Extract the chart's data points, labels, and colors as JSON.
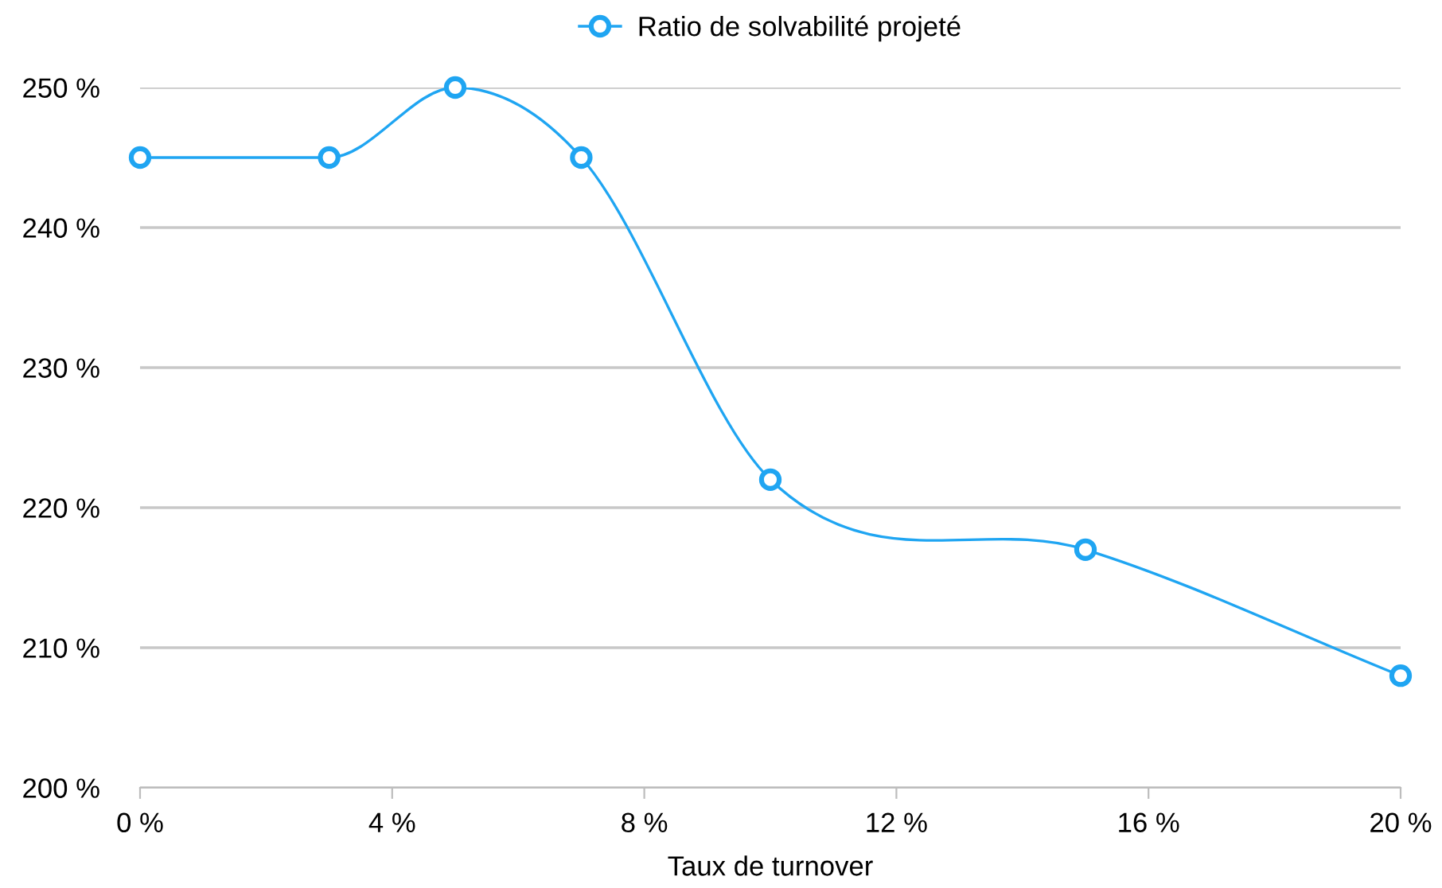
{
  "chart_data": {
    "type": "line",
    "xlabel": "Taux de turnover",
    "x": [
      0,
      3,
      5,
      7,
      10,
      15,
      20
    ],
    "series": [
      {
        "name": "Ratio de solvabilité projeté",
        "color": "#1fa5f2",
        "values": [
          245,
          245,
          250,
          245,
          222,
          217,
          208
        ]
      }
    ],
    "xlim": [
      0,
      20
    ],
    "xticks": [
      {
        "value": 0,
        "label": "0 %"
      },
      {
        "value": 4,
        "label": "4 %"
      },
      {
        "value": 8,
        "label": "8 %"
      },
      {
        "value": 12,
        "label": "12 %"
      },
      {
        "value": 16,
        "label": "16 %"
      },
      {
        "value": 20,
        "label": "20 %"
      }
    ],
    "ylim": [
      200,
      250
    ],
    "yticks": [
      {
        "value": 200,
        "label": "200 %"
      },
      {
        "value": 210,
        "label": "210 %"
      },
      {
        "value": 220,
        "label": "220 %"
      },
      {
        "value": 230,
        "label": "230 %"
      },
      {
        "value": 240,
        "label": "240 %"
      },
      {
        "value": 250,
        "label": "250 %"
      }
    ],
    "grid": "y",
    "legend": "top",
    "marker": "circle",
    "line_style": "solid"
  }
}
